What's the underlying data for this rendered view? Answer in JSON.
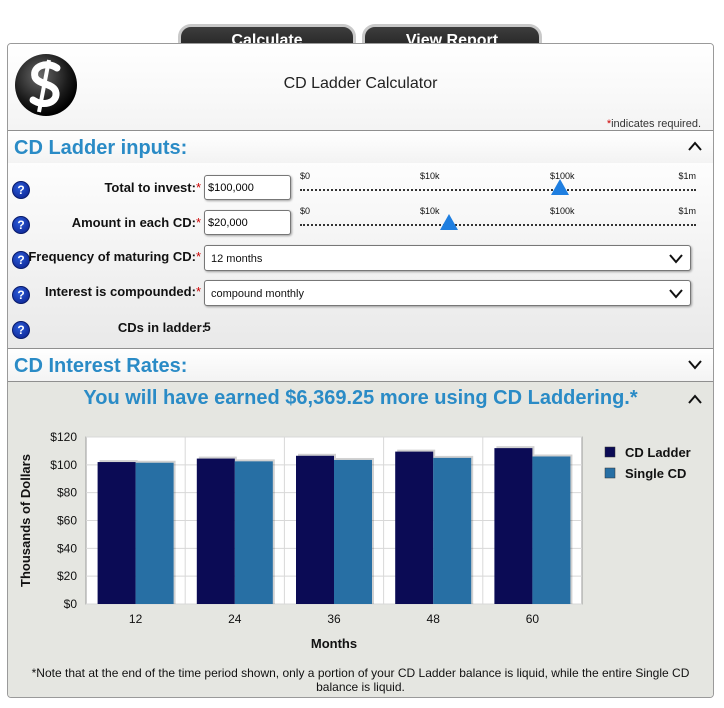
{
  "toolbar": {
    "calculate_label": "Calculate",
    "view_report_label": "View Report"
  },
  "header": {
    "title": "CD Ladder Calculator",
    "required_note": "indicates required.",
    "required_star": "*"
  },
  "inputs_section": {
    "title": "CD Ladder inputs:",
    "fields": {
      "total": {
        "label": "Total to invest:",
        "value": "$100,000"
      },
      "each": {
        "label": "Amount in each CD:",
        "value": "$20,000"
      },
      "frequency": {
        "label": "Frequency of maturing CD:",
        "value": "12 months"
      },
      "compounded": {
        "label": "Interest is compounded:",
        "value": "compound monthly"
      },
      "cds": {
        "label": "CDs in ladder:",
        "value": "5"
      }
    },
    "slider_ticks": [
      "$0",
      "$10k",
      "$100k",
      "$1m"
    ],
    "sliders": {
      "total_position": 0.657,
      "each_position": 0.375
    }
  },
  "rates_section": {
    "title": "CD Interest Rates:"
  },
  "results": {
    "headline": "You will have earned $6,369.25 more using CD Laddering.*",
    "note": "*Note that at the end of the time period shown, only a portion of your CD Ladder balance is liquid, while the entire Single CD balance is liquid."
  },
  "colors": {
    "accent": "#2a8bc6",
    "ladder": "#0b0b55",
    "single": "#276fa4",
    "required": "#cc0000",
    "thumb": "#1e7ee0"
  },
  "icons": {
    "help": "question-circle-icon",
    "collapse": "chevron-up-icon",
    "expand": "chevron-down-icon"
  },
  "chart_data": {
    "type": "bar",
    "categories": [
      "12",
      "24",
      "36",
      "48",
      "60"
    ],
    "series": [
      {
        "name": "CD Ladder",
        "values": [
          102,
          104.5,
          106.5,
          109.5,
          112
        ]
      },
      {
        "name": "Single CD",
        "values": [
          101.5,
          102.5,
          103.5,
          105,
          106
        ]
      }
    ],
    "xlabel": "Months",
    "ylabel": "Thousands of Dollars",
    "yticks": [
      "$0",
      "$20",
      "$40",
      "$60",
      "$80",
      "$100",
      "$120"
    ],
    "ylim": [
      0,
      120
    ],
    "legend": "right",
    "grid": true
  }
}
